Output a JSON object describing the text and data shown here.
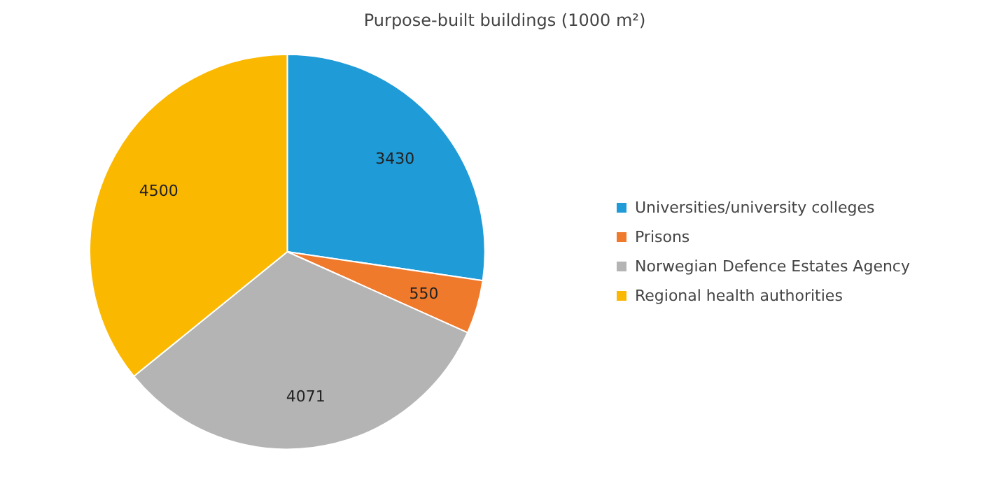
{
  "chart_data": {
    "type": "pie",
    "title": "Purpose-built buildings (1000 m²)",
    "categories": [
      "Universities/university colleges",
      "Prisons",
      "Norwegian Defence Estates Agency",
      "Regional health authorities"
    ],
    "values": [
      3430,
      550,
      4071,
      4500
    ],
    "colors": [
      "#1f9bd7",
      "#f07a2c",
      "#b4b4b4",
      "#fbb800"
    ],
    "data_labels": true,
    "legend": "right"
  }
}
